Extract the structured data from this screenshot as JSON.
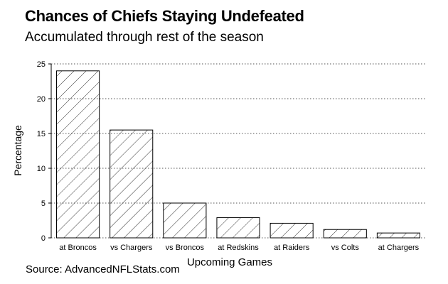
{
  "chart_data": {
    "type": "bar",
    "title": "Chances of Chiefs Staying Undefeated",
    "subtitle": "Accumulated through rest of the season",
    "xlabel": "Upcoming Games",
    "ylabel": "Percentage",
    "categories": [
      "at Broncos",
      "vs Chargers",
      "vs Broncos",
      "at Redskins",
      "at Raiders",
      "vs Colts",
      "at Chargers"
    ],
    "values": [
      24,
      15.5,
      5,
      2.9,
      2.1,
      1.2,
      0.7
    ],
    "ylim": [
      0,
      25
    ],
    "yticks": [
      "0",
      "5",
      "10",
      "15",
      "20",
      "25"
    ],
    "grid": true,
    "bar_fill": "hatched"
  },
  "source": "Source: AdvancedNFLStats.com"
}
